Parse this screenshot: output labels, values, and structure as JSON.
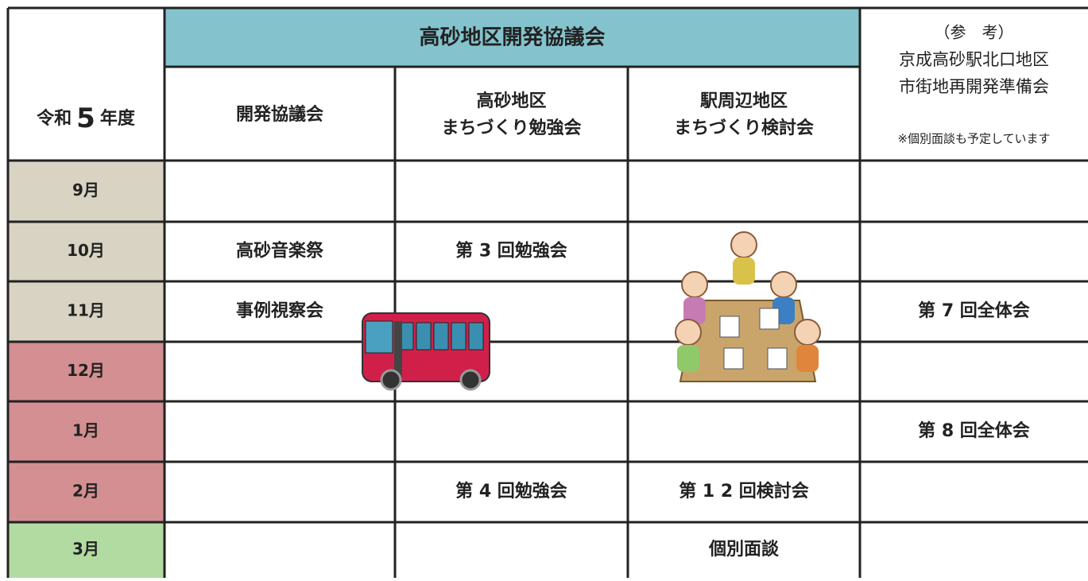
{
  "header": {
    "title": "高砂地区開発協議会",
    "year": {
      "prefix": "令和",
      "number": "5",
      "suffix": "年度"
    },
    "columns": [
      {
        "lines": [
          "開発協議会"
        ]
      },
      {
        "lines": [
          "高砂地区",
          "まちづくり勉強会"
        ]
      },
      {
        "lines": [
          "駅周辺地区",
          "まちづくり検討会"
        ]
      }
    ],
    "reference": {
      "heading": "（参　考）",
      "lines": [
        "京成高砂駅北口地区",
        "市街地再開発準備会"
      ],
      "note": "※個別面談も予定しています"
    }
  },
  "table": {
    "rows": [
      {
        "month": "9月",
        "color": "#d8d3c3",
        "cells": [
          null,
          null,
          null,
          null
        ]
      },
      {
        "month": "10月",
        "color": "#d8d3c3",
        "cells": [
          "高砂音楽祭",
          "第 3 回勉強会",
          null,
          null
        ]
      },
      {
        "month": "11月",
        "color": "#d8d3c3",
        "cells": [
          "事例視察会",
          null,
          null,
          "第 7 回全体会"
        ]
      },
      {
        "month": "12月",
        "color": "#d38f91",
        "cells": [
          null,
          null,
          null,
          null
        ]
      },
      {
        "month": "1月",
        "color": "#d38f91",
        "cells": [
          null,
          null,
          null,
          "第 8 回全体会"
        ]
      },
      {
        "month": "2月",
        "color": "#d38f91",
        "cells": [
          null,
          "第 4 回勉強会",
          "第 1 2 回検討会",
          null
        ]
      },
      {
        "month": "3月",
        "color": "#b2dba1",
        "cells": [
          null,
          null,
          "個別面談",
          null
        ]
      }
    ]
  }
}
